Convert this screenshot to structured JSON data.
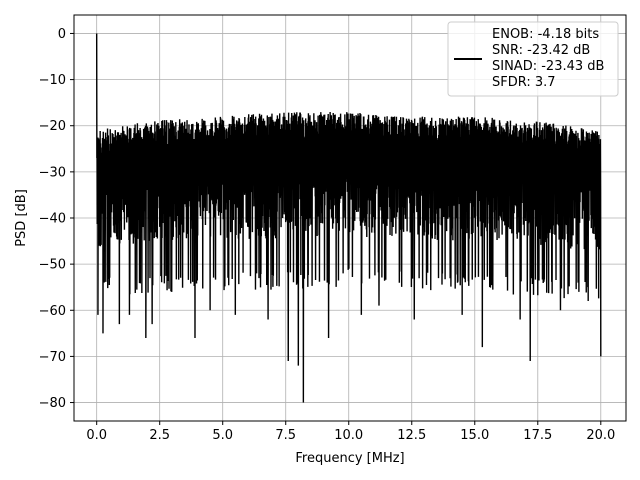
{
  "chart_data": {
    "type": "line",
    "title": "",
    "xlabel": "Frequency [MHz]",
    "ylabel": "PSD [dB]",
    "xlim": [
      -0.9,
      21.0
    ],
    "ylim": [
      -84,
      4
    ],
    "xticks": [
      0.0,
      2.5,
      5.0,
      7.5,
      10.0,
      12.5,
      15.0,
      17.5,
      20.0
    ],
    "xtick_labels": [
      "0.0",
      "2.5",
      "5.0",
      "7.5",
      "10.0",
      "12.5",
      "15.0",
      "17.5",
      "20.0"
    ],
    "yticks": [
      0,
      -10,
      -20,
      -30,
      -40,
      -50,
      -60,
      -70,
      -80
    ],
    "ytick_labels": [
      "0",
      "−10",
      "−20",
      "−30",
      "−40",
      "−50",
      "−60",
      "−70",
      "−80"
    ],
    "grid": true,
    "legend_position": "top-right",
    "line_color": "#000000",
    "legend": {
      "lines": [
        "ENOB: -4.18 bits",
        "SNR: -23.42 dB",
        "SINAD: -23.43 dB",
        "SFDR: 3.7"
      ]
    },
    "series": [
      {
        "x_range": [
          0.0,
          20.0
        ],
        "noise_floor_median": -32,
        "upper_envelope": [
          [
            0.0,
            -21
          ],
          [
            2.0,
            -19
          ],
          [
            5.0,
            -18
          ],
          [
            7.0,
            -17
          ],
          [
            10.0,
            -17
          ],
          [
            12.0,
            -18
          ],
          [
            15.0,
            -18
          ],
          [
            17.5,
            -19
          ],
          [
            20.0,
            -21
          ]
        ],
        "lower_typical": [
          [
            0.0,
            -55
          ],
          [
            5.0,
            -54
          ],
          [
            10.0,
            -53
          ],
          [
            15.0,
            -54
          ],
          [
            20.0,
            -56
          ]
        ],
        "spurs": [
          {
            "x": 0.0,
            "y": 0.0
          }
        ],
        "deep_nulls": [
          {
            "x": 0.05,
            "y": -61
          },
          {
            "x": 0.25,
            "y": -65
          },
          {
            "x": 0.9,
            "y": -63
          },
          {
            "x": 1.3,
            "y": -61
          },
          {
            "x": 1.95,
            "y": -66
          },
          {
            "x": 2.2,
            "y": -63
          },
          {
            "x": 3.9,
            "y": -66
          },
          {
            "x": 4.5,
            "y": -60
          },
          {
            "x": 5.5,
            "y": -61
          },
          {
            "x": 6.8,
            "y": -62
          },
          {
            "x": 7.6,
            "y": -71
          },
          {
            "x": 8.0,
            "y": -72
          },
          {
            "x": 8.2,
            "y": -80
          },
          {
            "x": 9.2,
            "y": -66
          },
          {
            "x": 10.5,
            "y": -61
          },
          {
            "x": 11.2,
            "y": -59
          },
          {
            "x": 12.6,
            "y": -62
          },
          {
            "x": 14.5,
            "y": -61
          },
          {
            "x": 15.3,
            "y": -68
          },
          {
            "x": 16.8,
            "y": -62
          },
          {
            "x": 17.2,
            "y": -71
          },
          {
            "x": 18.4,
            "y": -60
          },
          {
            "x": 19.5,
            "y": -58
          },
          {
            "x": 20.0,
            "y": -70
          }
        ]
      }
    ]
  }
}
